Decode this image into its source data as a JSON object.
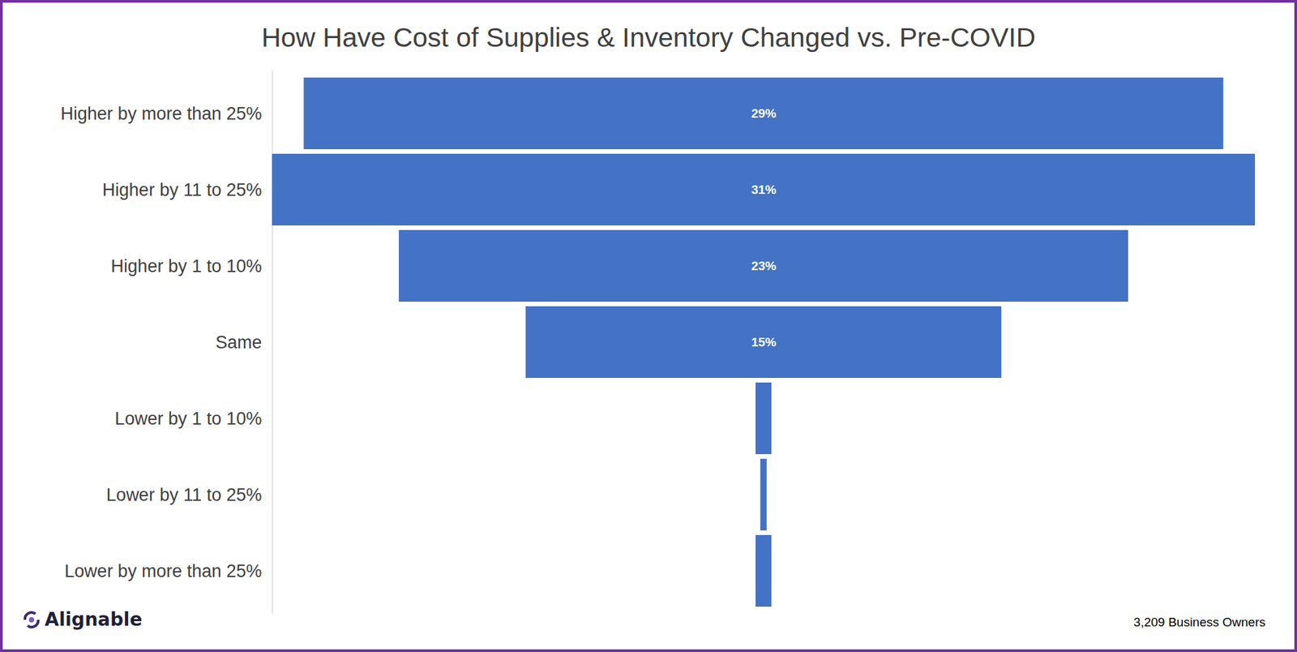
{
  "chart_data": {
    "type": "funnel",
    "title": "How Have Cost of Supplies & Inventory Changed vs. Pre-COVID",
    "categories": [
      "Higher by more than 25%",
      "Higher by 11 to 25%",
      "Higher by 1 to 10%",
      "Same",
      "Lower by 1 to 10%",
      "Lower by 11 to 25%",
      "Lower by more than 25%"
    ],
    "values": [
      29,
      31,
      23,
      15,
      0.5,
      0.2,
      0.5
    ],
    "value_labels": [
      "29%",
      "31%",
      "23%",
      "15%",
      null,
      null,
      null
    ],
    "color": "#4472c4",
    "orientation": "horizontal",
    "data_labels": true,
    "tick_labels": "y",
    "source": "Alignable",
    "caption": "3,209 Business Owners"
  }
}
